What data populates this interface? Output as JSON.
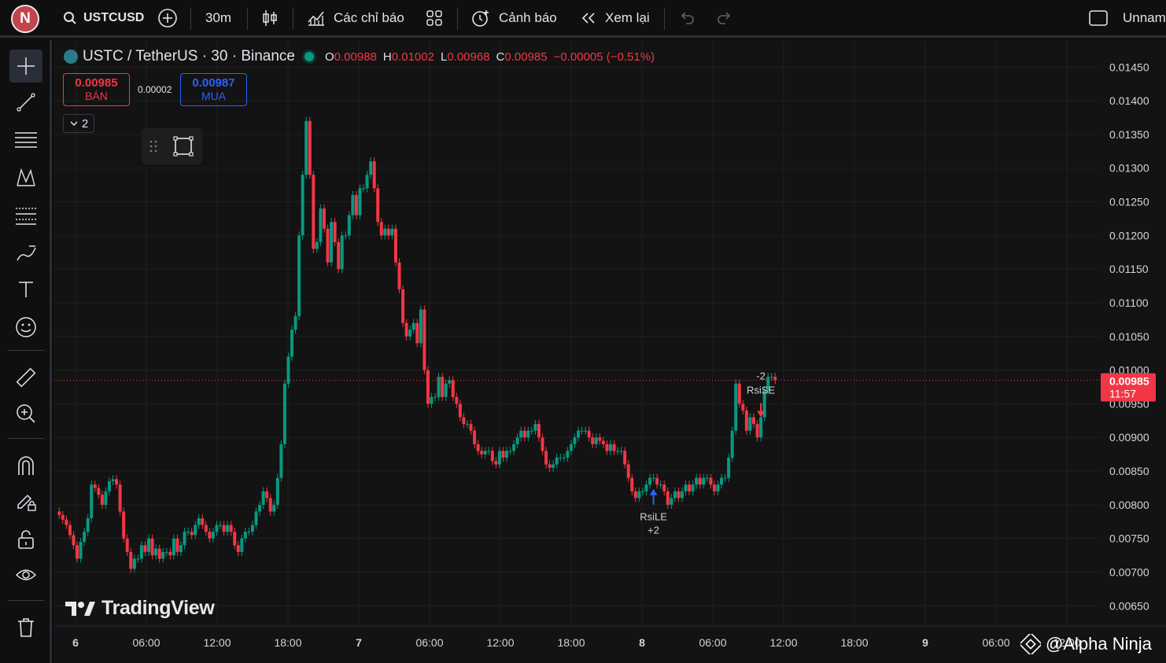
{
  "topbar": {
    "avatar_letter": "N",
    "symbol": "USTCUSD",
    "interval": "30m",
    "indicators_label": "Các chỉ báo",
    "alerts_label": "Cảnh báo",
    "replay_label": "Xem lại",
    "layout_name": "Unnam"
  },
  "legend": {
    "title": "USTC / TetherUS · 30 · Binance",
    "o_key": "O",
    "o_val": "0.00988",
    "h_key": "H",
    "h_val": "0.01002",
    "l_key": "L",
    "l_val": "0.00968",
    "c_key": "C",
    "c_val": "0.00985",
    "change": "−0.00005 (−0.51%)"
  },
  "trade": {
    "sell_price": "0.00985",
    "sell_label": "BÁN",
    "buy_price": "0.00987",
    "buy_label": "MUA",
    "spread": "0.00002",
    "collapse_count": "2"
  },
  "brand": {
    "logo_text": "TradingView",
    "watermark": "@Alpha Ninja"
  },
  "colors": {
    "up": "#089981",
    "down": "#f23645",
    "bg": "#131313",
    "grid": "#1f1f1f",
    "price_line": "#f23645",
    "signal_long": "#2962ff"
  },
  "chart_data": {
    "type": "candlestick",
    "title": "USTC / TetherUS · 30 · Binance",
    "price_axis_ticks": [
      "0.01450",
      "0.01400",
      "0.01350",
      "0.01300",
      "0.01250",
      "0.01200",
      "0.01150",
      "0.01100",
      "0.01050",
      "0.01000",
      "0.00950",
      "0.00900",
      "0.00850",
      "0.00800",
      "0.00750",
      "0.00700",
      "0.00650"
    ],
    "time_axis_ticks": [
      "6",
      "06:00",
      "12:00",
      "18:00",
      "7",
      "06:00",
      "12:00",
      "18:00",
      "8",
      "06:00",
      "12:00",
      "18:00",
      "9",
      "06:00",
      "12:00"
    ],
    "current_price": "0.00985",
    "countdown": "11:57",
    "ylim": [
      0.0062,
      0.0149
    ],
    "close": [
      0.00785,
      0.00778,
      0.0077,
      0.00755,
      0.0074,
      0.0072,
      0.00745,
      0.0076,
      0.0078,
      0.0083,
      0.00825,
      0.00815,
      0.008,
      0.0082,
      0.00835,
      0.00838,
      0.0083,
      0.0079,
      0.0075,
      0.0073,
      0.00705,
      0.0072,
      0.0072,
      0.0074,
      0.0073,
      0.0075,
      0.00725,
      0.00735,
      0.0072,
      0.0073,
      0.0073,
      0.00725,
      0.0075,
      0.0073,
      0.0074,
      0.0076,
      0.0076,
      0.00755,
      0.0077,
      0.0078,
      0.0077,
      0.0076,
      0.0075,
      0.0076,
      0.0077,
      0.0077,
      0.0076,
      0.0077,
      0.0076,
      0.0074,
      0.0073,
      0.0075,
      0.0076,
      0.0076,
      0.0077,
      0.0079,
      0.008,
      0.0082,
      0.0081,
      0.0079,
      0.008,
      0.0084,
      0.0089,
      0.0098,
      0.0102,
      0.0106,
      0.0108,
      0.012,
      0.0129,
      0.0137,
      0.0129,
      0.0118,
      0.0119,
      0.0124,
      0.0121,
      0.0116,
      0.0122,
      0.0119,
      0.0115,
      0.012,
      0.012,
      0.0123,
      0.0126,
      0.0123,
      0.0127,
      0.0127,
      0.0129,
      0.0131,
      0.0127,
      0.0122,
      0.012,
      0.0121,
      0.012,
      0.0121,
      0.0116,
      0.0112,
      0.0107,
      0.0105,
      0.0106,
      0.0107,
      0.0104,
      0.0109,
      0.01,
      0.0095,
      0.0096,
      0.0096,
      0.0099,
      0.0096,
      0.0098,
      0.00985,
      0.0096,
      0.0095,
      0.0093,
      0.0092,
      0.0092,
      0.0091,
      0.0089,
      0.0088,
      0.00875,
      0.0088,
      0.0088,
      0.00865,
      0.0086,
      0.0088,
      0.0087,
      0.0088,
      0.0088,
      0.0089,
      0.009,
      0.0091,
      0.009,
      0.0091,
      0.0091,
      0.0092,
      0.009,
      0.0088,
      0.0086,
      0.00855,
      0.0086,
      0.0087,
      0.0087,
      0.0087,
      0.0088,
      0.0089,
      0.009,
      0.0091,
      0.0091,
      0.0091,
      0.009,
      0.0089,
      0.009,
      0.00895,
      0.0089,
      0.0088,
      0.0089,
      0.0088,
      0.0088,
      0.0088,
      0.0086,
      0.0084,
      0.0082,
      0.0081,
      0.0082,
      0.0082,
      0.0083,
      0.0084,
      0.0084,
      0.0083,
      0.0083,
      0.0082,
      0.008,
      0.0081,
      0.0082,
      0.0081,
      0.0082,
      0.0083,
      0.0082,
      0.0083,
      0.0084,
      0.0083,
      0.0084,
      0.0084,
      0.0083,
      0.0082,
      0.0083,
      0.0084,
      0.0084,
      0.0087,
      0.0091,
      0.0098,
      0.0095,
      0.0094,
      0.0091,
      0.0093,
      0.0092,
      0.009,
      0.0093,
      0.0097,
      0.0099,
      0.0099,
      0.00985
    ],
    "annotations": [
      {
        "text_top": "RsiLE",
        "text_bottom": "+2",
        "type": "long",
        "bar": 166
      },
      {
        "text_top": "-2",
        "text_bottom": "RsiSE",
        "type": "short",
        "bar": 196
      }
    ]
  }
}
